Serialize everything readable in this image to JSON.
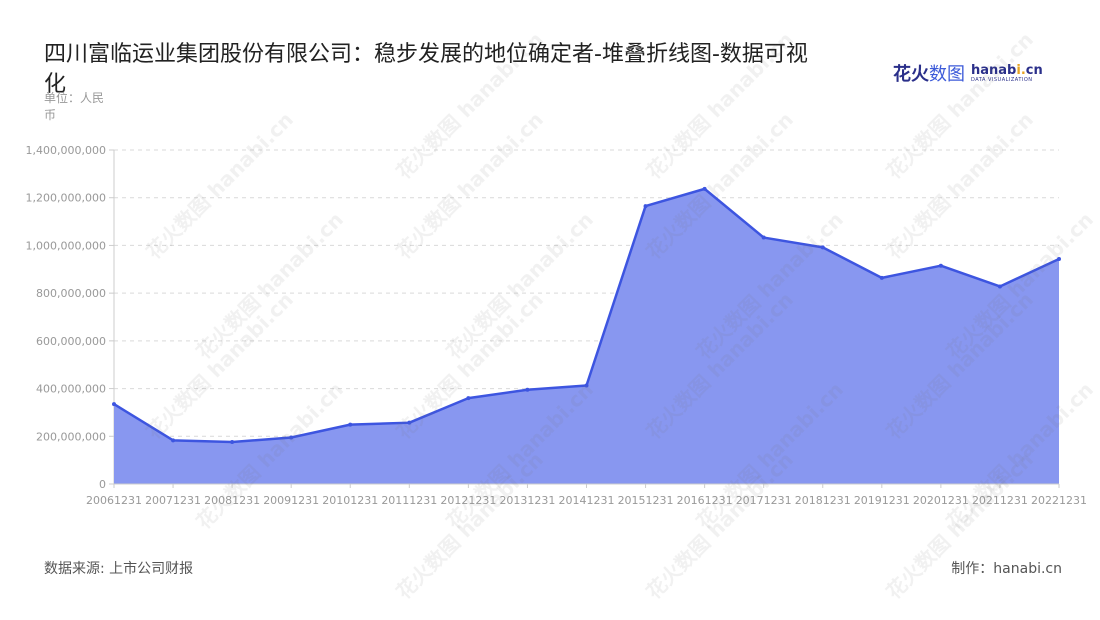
{
  "title": "四川富临运业集团股份有限公司：稳步发展的地位确定者-堆叠折线图-数据可视化",
  "unit": "单位：人民币",
  "logo": {
    "cn_part1": "花火",
    "cn_part2": "数图",
    "en_name_a": "hanab",
    "en_name_dot": "i.",
    "en_name_b": "cn",
    "en_sub": "DATA VISUALIZATION"
  },
  "watermark": "花火数图 hanabi.cn",
  "source": "数据来源: 上市公司财报",
  "credit": "制作：hanabi.cn",
  "colors": {
    "area_fill": "#8897f0",
    "line": "#3d55e0",
    "grid": "#d9d9d9",
    "axis_text": "#999999"
  },
  "chart_data": {
    "type": "area",
    "categories": [
      "20061231",
      "20071231",
      "20081231",
      "20091231",
      "20101231",
      "20111231",
      "20121231",
      "20131231",
      "20141231",
      "20151231",
      "20161231",
      "20171231",
      "20181231",
      "20191231",
      "20201231",
      "20211231",
      "20221231"
    ],
    "series": [
      {
        "values": [
          335000000,
          183000000,
          176000000,
          195000000,
          249000000,
          257000000,
          360000000,
          395000000,
          413000000,
          1165000000,
          1237000000,
          1033000000,
          992000000,
          864000000,
          915000000,
          828000000,
          943000000
        ]
      }
    ],
    "ylim": [
      0,
      1400000000
    ],
    "yticks": [
      0,
      200000000,
      400000000,
      600000000,
      800000000,
      1000000000,
      1200000000,
      1400000000
    ],
    "ytick_labels": [
      "0",
      "200,000,000",
      "400,000,000",
      "600,000,000",
      "800,000,000",
      "1,000,000,000",
      "1,200,000,000",
      "1,400,000,000"
    ],
    "grid": true
  }
}
